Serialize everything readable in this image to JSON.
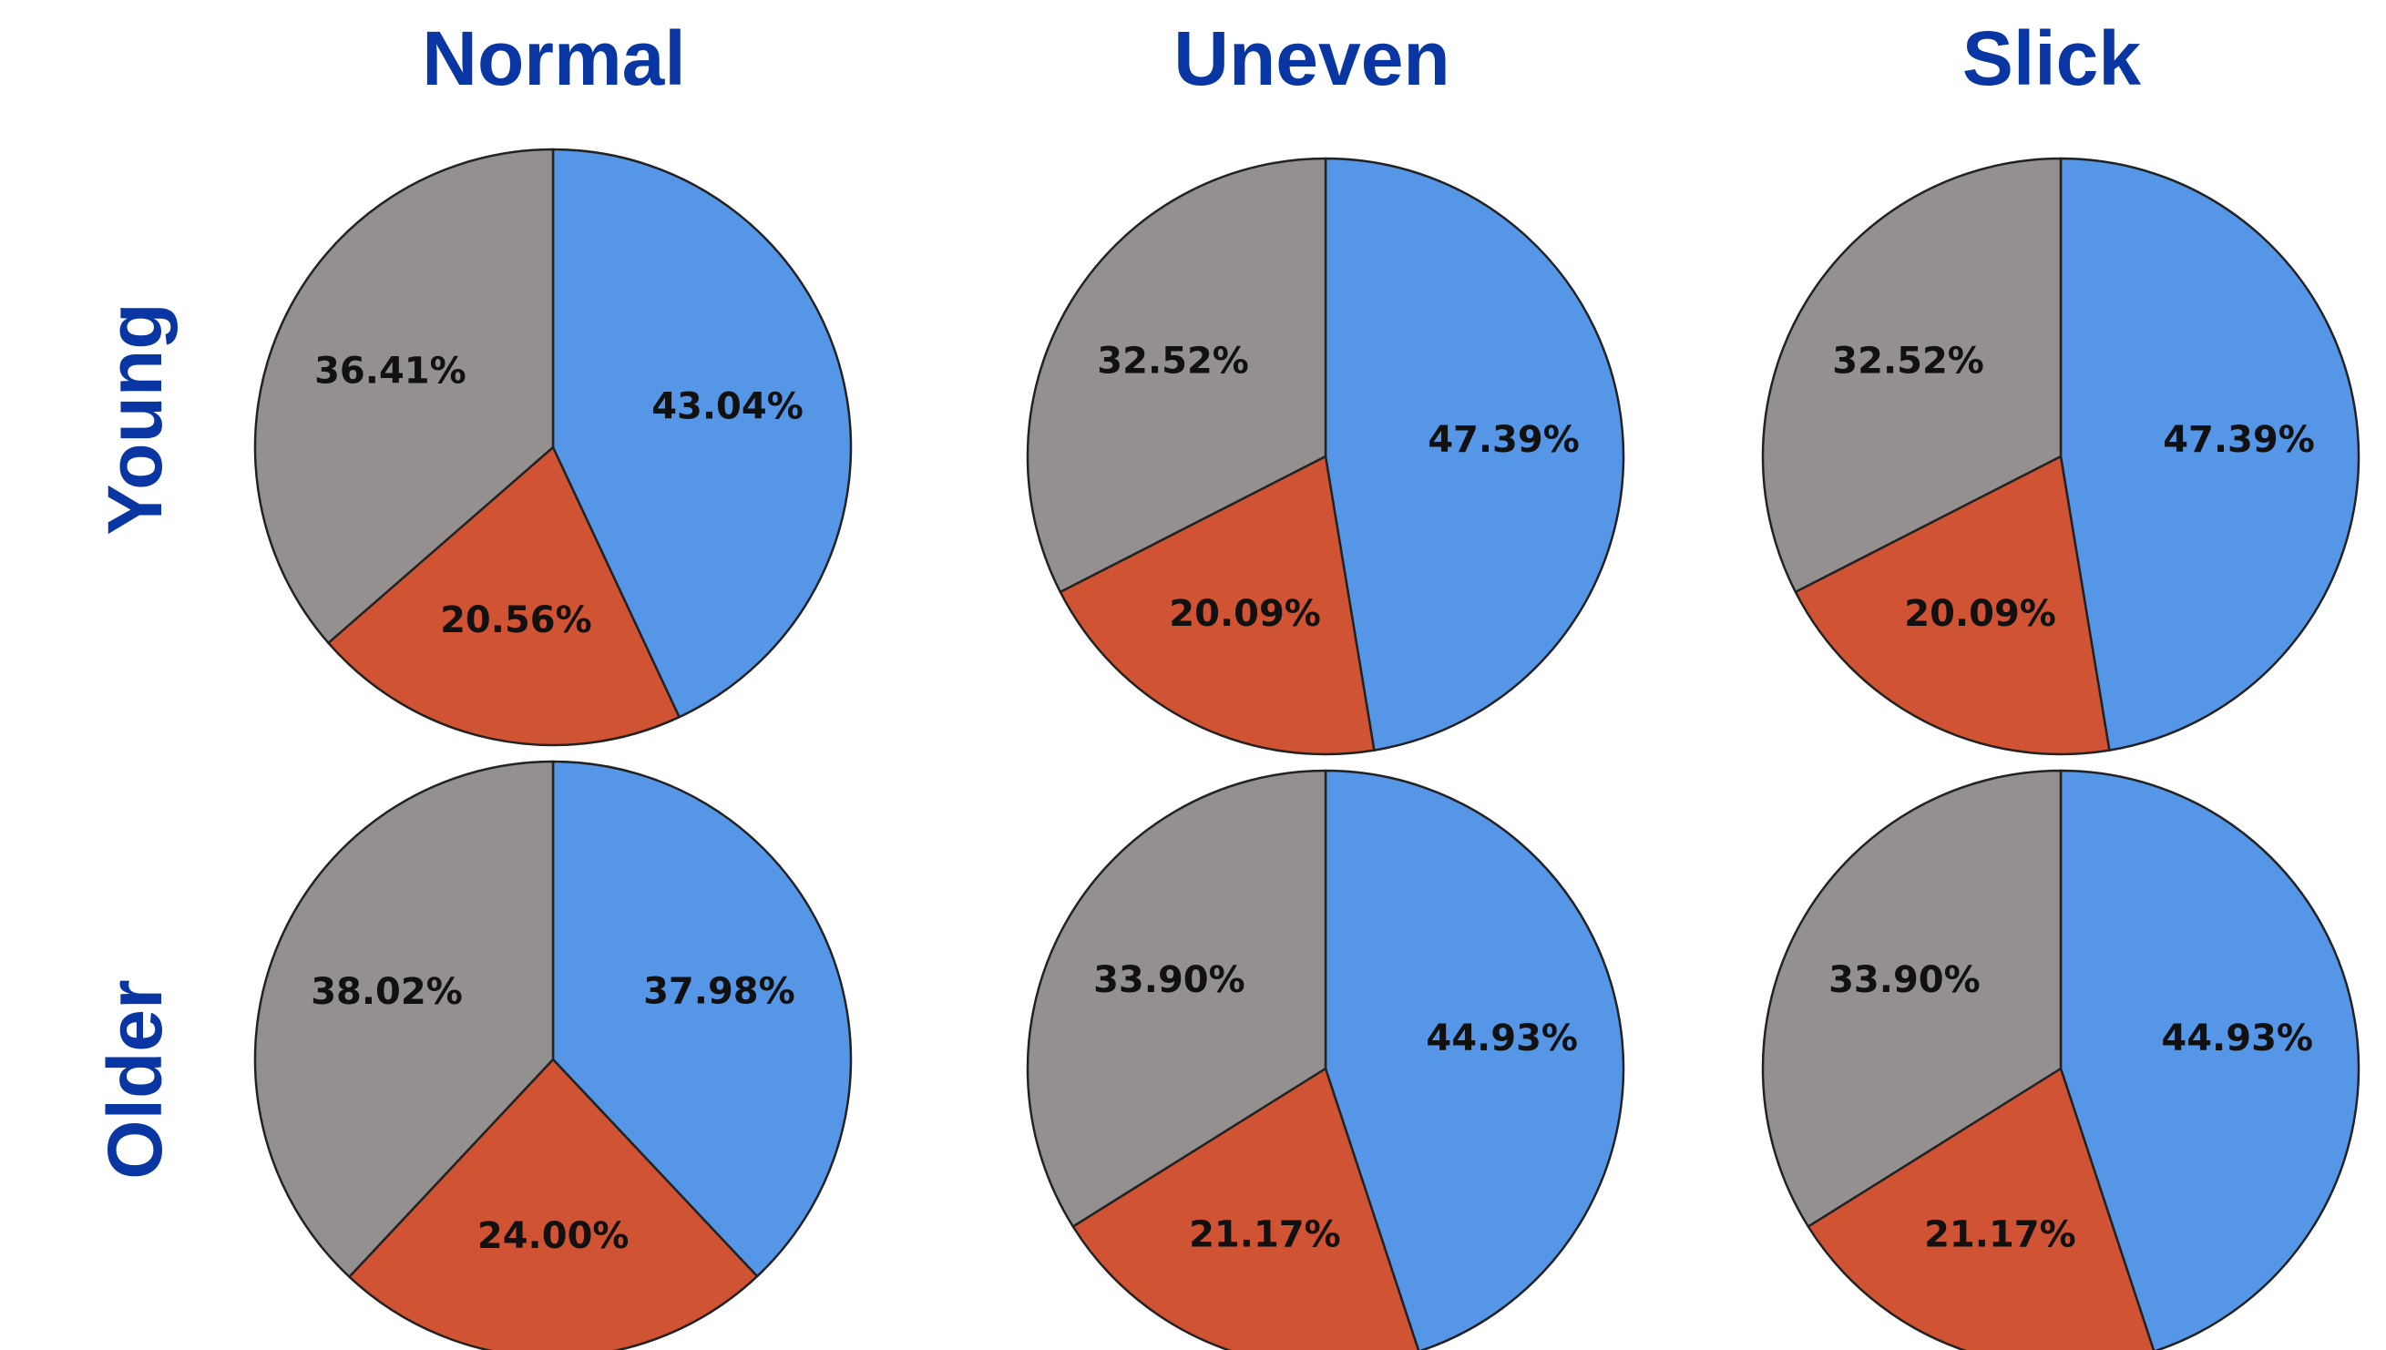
{
  "columns": [
    "Normal",
    "Uneven",
    "Slick"
  ],
  "rows": [
    "Young",
    "Older"
  ],
  "colors": {
    "blue": "#5596e6",
    "red": "#d05333",
    "gray": "#949090",
    "outline": "#222222"
  },
  "chart_data": [
    {
      "type": "pie",
      "column": "Normal",
      "row": "Young",
      "slices": [
        {
          "color": "blue",
          "value": 43.04,
          "label": "43.04%"
        },
        {
          "color": "red",
          "value": 20.56,
          "label": "20.56%"
        },
        {
          "color": "gray",
          "value": 36.41,
          "label": "36.41%"
        }
      ]
    },
    {
      "type": "pie",
      "column": "Uneven",
      "row": "Young",
      "slices": [
        {
          "color": "blue",
          "value": 47.39,
          "label": "47.39%"
        },
        {
          "color": "red",
          "value": 20.09,
          "label": "20.09%"
        },
        {
          "color": "gray",
          "value": 32.52,
          "label": "32.52%"
        }
      ]
    },
    {
      "type": "pie",
      "column": "Slick",
      "row": "Young",
      "slices": [
        {
          "color": "blue",
          "value": 47.39,
          "label": "47.39%"
        },
        {
          "color": "red",
          "value": 20.09,
          "label": "20.09%"
        },
        {
          "color": "gray",
          "value": 32.52,
          "label": "32.52%"
        }
      ]
    },
    {
      "type": "pie",
      "column": "Normal",
      "row": "Older",
      "slices": [
        {
          "color": "blue",
          "value": 37.98,
          "label": "37.98%"
        },
        {
          "color": "red",
          "value": 24.0,
          "label": "24.00%"
        },
        {
          "color": "gray",
          "value": 38.02,
          "label": "38.02%"
        }
      ]
    },
    {
      "type": "pie",
      "column": "Uneven",
      "row": "Older",
      "slices": [
        {
          "color": "blue",
          "value": 44.93,
          "label": "44.93%"
        },
        {
          "color": "red",
          "value": 21.17,
          "label": "21.17%"
        },
        {
          "color": "gray",
          "value": 33.9,
          "label": "33.90%"
        }
      ]
    },
    {
      "type": "pie",
      "column": "Slick",
      "row": "Older",
      "slices": [
        {
          "color": "blue",
          "value": 44.93,
          "label": "44.93%"
        },
        {
          "color": "red",
          "value": 21.17,
          "label": "21.17%"
        },
        {
          "color": "gray",
          "value": 33.9,
          "label": "33.90%"
        }
      ]
    }
  ]
}
